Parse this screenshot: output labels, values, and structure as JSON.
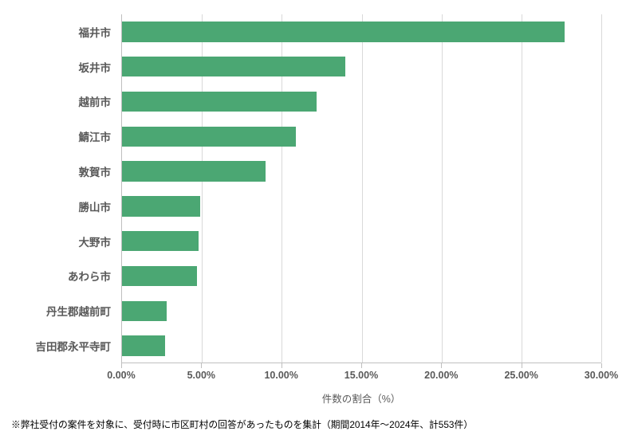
{
  "chart": {
    "type": "bar-horizontal",
    "background_color": "#ffffff",
    "plot_border_color": "#bfbfbf",
    "grid_color": "#d9d9d9",
    "bar_color": "#4ba773",
    "xlim": [
      0,
      30
    ],
    "xtick_step": 5,
    "xtick_format_suffix": ".00%",
    "xlabel": "件数の割合（%）",
    "label_color": "#595959",
    "ylabel_fontsize": 13.5,
    "xtick_fontsize": 12.5,
    "xlabel_fontsize": 12.5,
    "bar_height_ratio": 0.58,
    "categories": [
      "福井市",
      "坂井市",
      "越前市",
      "鯖江市",
      "敦賀市",
      "勝山市",
      "大野市",
      "あわら市",
      "丹生郡越前町",
      "吉田郡永平寺町"
    ],
    "values": [
      27.7,
      14.0,
      12.2,
      10.9,
      9.0,
      4.9,
      4.8,
      4.7,
      2.8,
      2.7
    ],
    "xticks": [
      {
        "value": 0,
        "label": "0.00%"
      },
      {
        "value": 5,
        "label": "5.00%"
      },
      {
        "value": 10,
        "label": "10.00%"
      },
      {
        "value": 15,
        "label": "15.00%"
      },
      {
        "value": 20,
        "label": "20.00%"
      },
      {
        "value": 25,
        "label": "25.00%"
      },
      {
        "value": 30,
        "label": "30.00%"
      }
    ]
  },
  "footnote": "※弊社受付の案件を対象に、受付時に市区町村の回答があったものを集計（期間2014年～2024年、計553件）"
}
